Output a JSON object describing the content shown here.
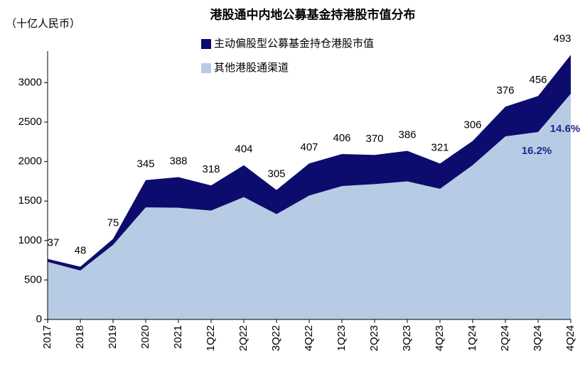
{
  "chart_data": {
    "type": "stacked-area",
    "title": "港股通中内地公募基金持港股市值分布",
    "y_label": "（十亿人民币）",
    "categories": [
      "2017",
      "2018",
      "2019",
      "2020",
      "2021",
      "1Q22",
      "2Q22",
      "3Q22",
      "4Q22",
      "1Q23",
      "2Q23",
      "3Q23",
      "4Q23",
      "1Q24",
      "2Q24",
      "3Q24",
      "4Q24"
    ],
    "series": [
      {
        "name": "其他港股通渠道",
        "color": "#b8cbe4",
        "values": [
          730,
          620,
          945,
          1420,
          1415,
          1380,
          1550,
          1335,
          1570,
          1690,
          1715,
          1750,
          1655,
          1955,
          2320,
          2375,
          2860
        ]
      },
      {
        "name": "主动偏股型公募基金持仓港股市值",
        "color": "#0c0c6e",
        "values": [
          37,
          48,
          75,
          345,
          388,
          318,
          404,
          305,
          407,
          406,
          370,
          386,
          321,
          306,
          376,
          456,
          493
        ]
      }
    ],
    "annotations": [
      "14.6%",
      "16.2%"
    ],
    "ylim": [
      0,
      3400
    ],
    "yticks": [
      0,
      500,
      1000,
      1500,
      2000,
      2500,
      3000
    ],
    "legend": "top-left"
  }
}
